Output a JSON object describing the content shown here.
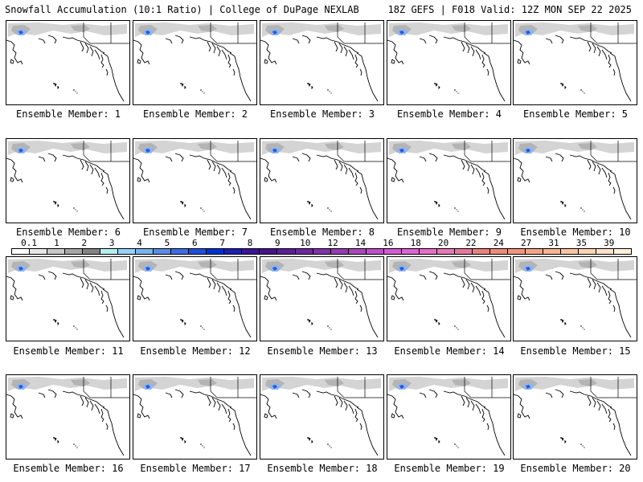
{
  "header": {
    "title_left": "Snowfall Accumulation (10:1 Ratio) | College of DuPage NEXLAB",
    "title_right": "18Z GEFS | F018 Valid: 12Z MON SEP 22 2025"
  },
  "members": [
    {
      "label": "Ensemble Member: 1"
    },
    {
      "label": "Ensemble Member: 2"
    },
    {
      "label": "Ensemble Member: 3"
    },
    {
      "label": "Ensemble Member: 4"
    },
    {
      "label": "Ensemble Member: 5"
    },
    {
      "label": "Ensemble Member: 6"
    },
    {
      "label": "Ensemble Member: 7"
    },
    {
      "label": "Ensemble Member: 8"
    },
    {
      "label": "Ensemble Member: 9"
    },
    {
      "label": "Ensemble Member: 10"
    },
    {
      "label": "Ensemble Member: 11"
    },
    {
      "label": "Ensemble Member: 12"
    },
    {
      "label": "Ensemble Member: 13"
    },
    {
      "label": "Ensemble Member: 14"
    },
    {
      "label": "Ensemble Member: 15"
    },
    {
      "label": "Ensemble Member: 16"
    },
    {
      "label": "Ensemble Member: 17"
    },
    {
      "label": "Ensemble Member: 18"
    },
    {
      "label": "Ensemble Member: 19"
    },
    {
      "label": "Ensemble Member: 20"
    }
  ],
  "colorbar": {
    "tick_labels": [
      "0.1",
      "1",
      "2",
      "3",
      "4",
      "5",
      "6",
      "7",
      "8",
      "9",
      "10",
      "12",
      "14",
      "16",
      "18",
      "20",
      "22",
      "24",
      "27",
      "31",
      "35",
      "39"
    ],
    "colors": [
      "#ffffff",
      "#e6e6e6",
      "#c8c8c8",
      "#a6a6a6",
      "#848484",
      "#b4f0f0",
      "#96d2fa",
      "#78b4f0",
      "#5a8ce6",
      "#3c6ee6",
      "#1e50dc",
      "#0032d2",
      "#1e1eb4",
      "#3c1496",
      "#46148c",
      "#5a1e96",
      "#6e28a0",
      "#8232aa",
      "#963cb4",
      "#aa46be",
      "#be50c8",
      "#d25ad2",
      "#dc64d2",
      "#e66ec8",
      "#e678b4",
      "#e6789b",
      "#e6827d",
      "#eb8c78",
      "#f0967d",
      "#f5a587",
      "#fab491",
      "#ffc3a0",
      "#ffd2b4",
      "#ffe1c8",
      "#fff0dc"
    ]
  },
  "map_legend": {
    "snow_light": "#d4d4d4",
    "snow_mid": "#b4b4b4",
    "snow_blue": "#8fb6ee",
    "snow_deep": "#2a58d8"
  }
}
